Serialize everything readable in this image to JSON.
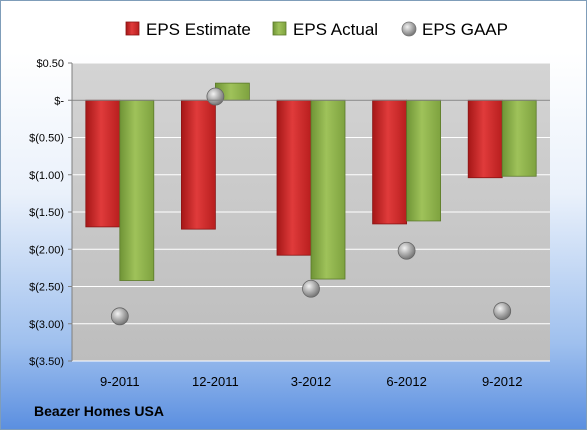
{
  "footer": {
    "company": "Beazer Homes USA"
  },
  "colors": {
    "estimate": "#d42a2a",
    "actual": "#8db04a",
    "gaap": "#a9a9a9",
    "plot_background": "#c8c8c8",
    "gridline": "#ffffff"
  },
  "chart_data": {
    "type": "bar",
    "categories": [
      "9-2011",
      "12-2011",
      "3-2012",
      "6-2012",
      "9-2012"
    ],
    "series": [
      {
        "name": "EPS Estimate",
        "kind": "bar",
        "values": [
          -1.7,
          -1.73,
          -2.08,
          -1.66,
          -1.04
        ]
      },
      {
        "name": "EPS Actual",
        "kind": "bar",
        "values": [
          -2.42,
          0.23,
          -2.4,
          -1.62,
          -1.02
        ]
      },
      {
        "name": "EPS GAAP",
        "kind": "scatter",
        "values": [
          -2.9,
          0.05,
          -2.53,
          -2.02,
          -2.83
        ]
      }
    ],
    "y_ticks": [
      0.5,
      0,
      -0.5,
      -1.0,
      -1.5,
      -2.0,
      -2.5,
      -3.0,
      -3.5
    ],
    "y_tick_labels": [
      "$0.50",
      "$-",
      "$(0.50)",
      "$(1.00)",
      "$(1.50)",
      "$(2.00)",
      "$(2.50)",
      "$(3.00)",
      "$(3.50)"
    ],
    "ylim": [
      -3.5,
      0.5
    ],
    "legend_position": "top",
    "grid": true
  }
}
